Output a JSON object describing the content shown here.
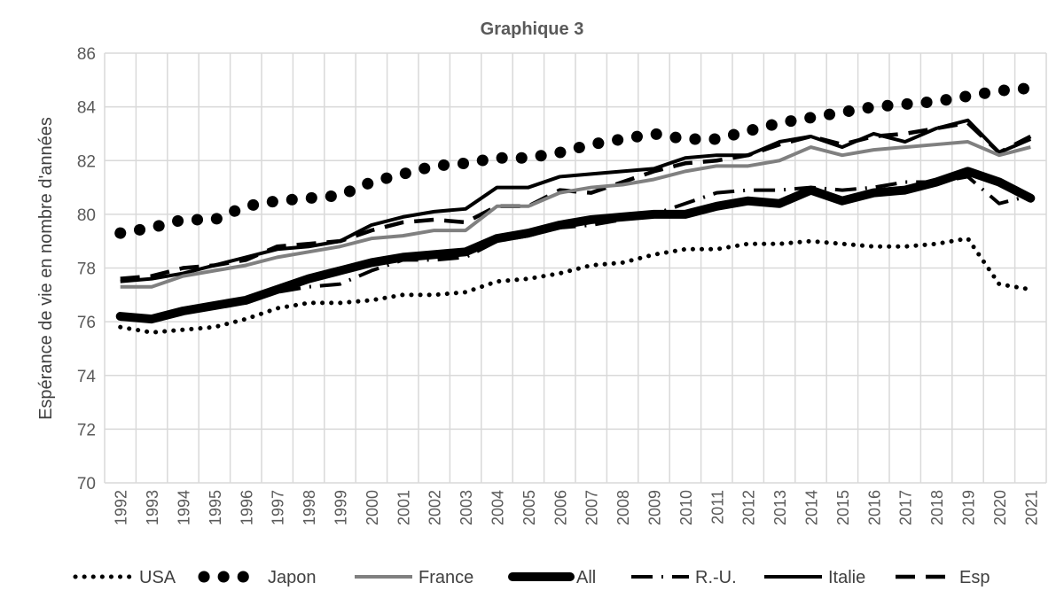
{
  "chart_data": {
    "type": "line",
    "title": "Graphique 3",
    "xlabel": "",
    "ylabel": "Espérance de vie en nombre d'années",
    "ylim": [
      70,
      86
    ],
    "yticks": [
      "70",
      "72",
      "74",
      "76",
      "78",
      "80",
      "82",
      "84",
      "86"
    ],
    "grid": true,
    "legend": "bottom",
    "categories": [
      "1992",
      "1993",
      "1994",
      "1995",
      "1996",
      "1997",
      "1998",
      "1999",
      "2000",
      "2001",
      "2002",
      "2003",
      "2004",
      "2005",
      "2006",
      "2007",
      "2008",
      "2009",
      "2010",
      "2011",
      "2012",
      "2013",
      "2014",
      "2015",
      "2016",
      "2017",
      "2018",
      "2019",
      "2020",
      "2021"
    ],
    "series": [
      {
        "name": "USA",
        "style": "small-dots",
        "color": "#000000",
        "values": [
          75.8,
          75.6,
          75.7,
          75.8,
          76.1,
          76.5,
          76.7,
          76.7,
          76.8,
          77.0,
          77.0,
          77.1,
          77.5,
          77.6,
          77.8,
          78.1,
          78.2,
          78.5,
          78.7,
          78.7,
          78.9,
          78.9,
          79.0,
          78.9,
          78.8,
          78.8,
          78.9,
          79.1,
          77.4,
          77.2
        ]
      },
      {
        "name": "Japon",
        "style": "big-dots",
        "color": "#000000",
        "values": [
          79.3,
          79.5,
          79.8,
          79.8,
          80.3,
          80.5,
          80.6,
          80.7,
          81.2,
          81.5,
          81.8,
          81.9,
          82.1,
          82.1,
          82.3,
          82.6,
          82.8,
          83.0,
          82.8,
          82.8,
          83.1,
          83.4,
          83.6,
          83.8,
          84.0,
          84.1,
          84.2,
          84.4,
          84.6,
          84.7
        ]
      },
      {
        "name": "France",
        "style": "solid",
        "color": "#808080",
        "values": [
          77.3,
          77.3,
          77.7,
          77.9,
          78.1,
          78.4,
          78.6,
          78.8,
          79.1,
          79.2,
          79.4,
          79.4,
          80.3,
          80.3,
          80.8,
          81.0,
          81.1,
          81.3,
          81.6,
          81.8,
          81.8,
          82.0,
          82.5,
          82.2,
          82.4,
          82.5,
          82.6,
          82.7,
          82.2,
          82.5
        ]
      },
      {
        "name": "All",
        "style": "thick",
        "color": "#000000",
        "values": [
          76.2,
          76.1,
          76.4,
          76.6,
          76.8,
          77.2,
          77.6,
          77.9,
          78.2,
          78.4,
          78.5,
          78.6,
          79.1,
          79.3,
          79.6,
          79.8,
          79.9,
          80.0,
          80.0,
          80.3,
          80.5,
          80.4,
          80.9,
          80.5,
          80.8,
          80.9,
          81.2,
          81.6,
          81.2,
          80.6
        ]
      },
      {
        "name": "R.-U.",
        "style": "dash-dot",
        "color": "#000000",
        "values": [
          76.1,
          76.1,
          76.5,
          76.6,
          76.7,
          77.1,
          77.3,
          77.4,
          77.9,
          78.3,
          78.3,
          78.4,
          79.0,
          79.2,
          79.5,
          79.6,
          79.8,
          80.0,
          80.4,
          80.8,
          80.9,
          80.9,
          81.0,
          80.9,
          81.0,
          81.2,
          81.2,
          81.4,
          80.4,
          80.7
        ]
      },
      {
        "name": "Italie",
        "style": "solid",
        "color": "#000000",
        "values": [
          77.5,
          77.6,
          77.8,
          78.1,
          78.4,
          78.7,
          78.8,
          79.0,
          79.6,
          79.9,
          80.1,
          80.2,
          81.0,
          81.0,
          81.4,
          81.5,
          81.6,
          81.7,
          82.1,
          82.2,
          82.2,
          82.7,
          82.9,
          82.5,
          83.0,
          82.7,
          83.2,
          83.5,
          82.3,
          82.8
        ]
      },
      {
        "name": "Esp",
        "style": "dash",
        "color": "#000000",
        "values": [
          77.6,
          77.7,
          78.0,
          78.1,
          78.3,
          78.8,
          78.9,
          79.0,
          79.4,
          79.7,
          79.8,
          79.7,
          80.3,
          80.3,
          80.9,
          80.8,
          81.2,
          81.6,
          81.9,
          82.0,
          82.2,
          82.6,
          82.9,
          82.6,
          82.9,
          83.0,
          83.2,
          83.4,
          82.3,
          82.9
        ]
      }
    ]
  }
}
